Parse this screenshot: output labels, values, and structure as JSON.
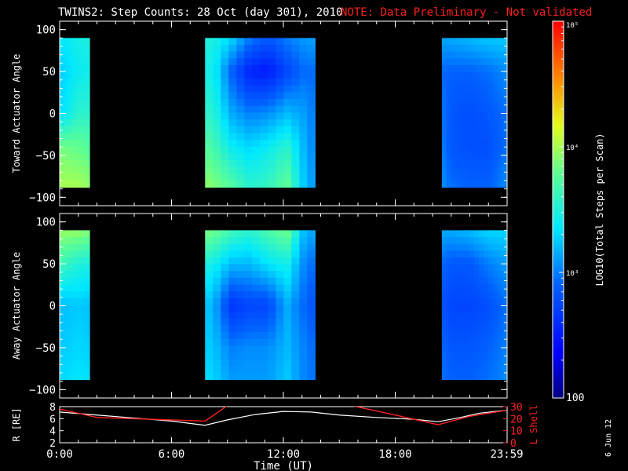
{
  "header": {
    "title": "TWINS2: Step Counts: 28 Oct (day 301), 2010",
    "note": "NOTE: Data Preliminary - Not validated",
    "date_stamp": "6 Jun 12"
  },
  "colors": {
    "background": "#000000",
    "axes": "#ffffff",
    "note": "#ff2020",
    "r_line": "#ffffff",
    "lshell_line": "#ff2020"
  },
  "chart_data": [
    {
      "type": "heatmap",
      "ylabel": "Toward Actuator Angle",
      "ylim": [
        -110,
        110
      ],
      "yticks": [
        -100,
        -50,
        0,
        50,
        100
      ],
      "xlim": [
        0,
        24
      ],
      "angle_range": [
        -88,
        90
      ],
      "data_intervals": [
        [
          0.0,
          1.6
        ],
        [
          7.8,
          13.7
        ],
        [
          20.5,
          23.98
        ]
      ],
      "colorscale": "log",
      "profile_log10": [
        {
          "angle": 90,
          "values": [
            3.35,
            3.45,
            3.5,
            3.3,
            3.0,
            2.85,
            3.0,
            3.1,
            3.15,
            3.2,
            3.25,
            3.25
          ]
        },
        {
          "angle": 50,
          "values": [
            3.25,
            3.4,
            3.45,
            2.9,
            2.55,
            2.5,
            2.75,
            2.95,
            2.9,
            2.9,
            2.95,
            3.05
          ]
        },
        {
          "angle": 0,
          "values": [
            3.3,
            3.55,
            3.55,
            3.15,
            3.0,
            3.05,
            3.2,
            3.1,
            2.85,
            2.8,
            2.85,
            2.95
          ]
        },
        {
          "angle": -40,
          "values": [
            3.85,
            3.8,
            3.7,
            3.4,
            3.3,
            3.4,
            3.55,
            3.15,
            2.85,
            2.8,
            2.8,
            2.95
          ]
        },
        {
          "angle": -88,
          "values": [
            4.0,
            4.0,
            3.9,
            3.75,
            3.55,
            3.6,
            3.8,
            3.2,
            2.95,
            2.9,
            2.9,
            3.05
          ]
        }
      ]
    },
    {
      "type": "heatmap",
      "ylabel": "Away Actuator Angle",
      "ylim": [
        -110,
        110
      ],
      "yticks": [
        -100,
        -50,
        0,
        50,
        100
      ],
      "xlim": [
        0,
        24
      ],
      "angle_range": [
        -88,
        90
      ],
      "data_intervals": [
        [
          0.0,
          1.6
        ],
        [
          7.8,
          13.7
        ],
        [
          20.5,
          23.98
        ]
      ],
      "colorscale": "log",
      "profile_log10": [
        {
          "angle": 90,
          "values": [
            3.95,
            3.95,
            3.85,
            3.65,
            3.55,
            3.7,
            3.85,
            3.15,
            3.15,
            3.2,
            3.3,
            3.3
          ]
        },
        {
          "angle": 50,
          "values": [
            3.65,
            3.5,
            3.45,
            3.2,
            3.2,
            3.35,
            3.45,
            3.0,
            2.85,
            2.85,
            3.0,
            3.1
          ]
        },
        {
          "angle": 0,
          "values": [
            3.2,
            3.25,
            3.2,
            2.65,
            2.75,
            2.75,
            3.15,
            2.9,
            2.75,
            2.75,
            2.8,
            2.95
          ]
        },
        {
          "angle": -50,
          "values": [
            3.25,
            3.3,
            3.25,
            3.0,
            3.05,
            3.05,
            3.2,
            3.0,
            2.85,
            2.85,
            2.9,
            3.0
          ]
        },
        {
          "angle": -88,
          "values": [
            3.3,
            3.35,
            3.3,
            3.1,
            3.1,
            3.1,
            3.25,
            3.0,
            2.9,
            2.9,
            2.95,
            3.05
          ]
        }
      ]
    },
    {
      "type": "line",
      "ylabel_left": "R [RE]",
      "ylabel_right": "L Shell",
      "xlabel": "Time (UT)",
      "xlim": [
        0,
        24
      ],
      "xticks": [
        "0:00",
        "6:00",
        "12:00",
        "18:00",
        "23:59"
      ],
      "xtick_values": [
        0,
        6,
        12,
        18,
        23.98
      ],
      "ylim_left": [
        2,
        8
      ],
      "yticks_left": [
        2,
        4,
        6,
        8
      ],
      "ylim_right": [
        0,
        30
      ],
      "yticks_right": [
        0,
        10,
        20,
        30
      ],
      "series": [
        {
          "axis": "left",
          "x": [
            0.0,
            2.0,
            4.0,
            6.0,
            7.8,
            9.0,
            10.5,
            12.0,
            13.5,
            15.0,
            17.0,
            19.0,
            20.3,
            21.5,
            22.5,
            23.98
          ],
          "y": [
            7.1,
            6.6,
            6.1,
            5.6,
            4.9,
            5.8,
            6.7,
            7.2,
            7.1,
            6.6,
            6.2,
            5.9,
            5.5,
            6.2,
            6.9,
            7.4
          ]
        },
        {
          "axis": "right",
          "segments": [
            {
              "x": [
                0.0,
                2.0,
                7.8,
                9.2
              ],
              "y": [
                28,
                21,
                18,
                33
              ]
            },
            {
              "x": [
                15.0,
                18.0,
                20.3,
                22.0,
                23.98
              ],
              "y": [
                33,
                23,
                15,
                22,
                27
              ]
            }
          ]
        }
      ]
    }
  ],
  "colorbar": {
    "label": "LOG10(Total Steps per Scan)",
    "range": [
      100,
      100000
    ],
    "tick_labels": [
      "100",
      "10³",
      "10⁴",
      "10⁵"
    ],
    "tick_values": [
      100,
      1000,
      10000,
      100000
    ]
  }
}
